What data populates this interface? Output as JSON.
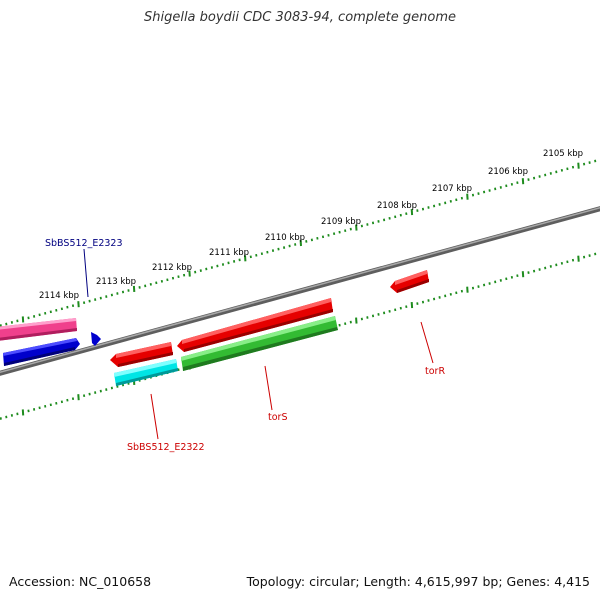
{
  "title": "Shigella boydii CDC 3083-94, complete genome",
  "footer": {
    "accession": "Accession: NC_010658",
    "topology": "Topology: circular; Length: 4,615,997 bp; Genes: 4,415"
  },
  "scale": {
    "unit": "kbp",
    "labels": [
      "2105 kbp",
      "2106 kbp",
      "2107 kbp",
      "2108 kbp",
      "2109 kbp",
      "2110 kbp",
      "2111 kbp",
      "2112 kbp",
      "2113 kbp",
      "2114 kbp"
    ]
  },
  "features": [
    {
      "name": "SbBS512_E2323",
      "color": "#0000cc",
      "label_color": "#000080"
    },
    {
      "name": "SbBS512_E2322",
      "color": "#00e5e5",
      "label_color": "#cc0000"
    },
    {
      "name": "torS",
      "color": "#e60000",
      "label_color": "#cc0000"
    },
    {
      "name": "torR",
      "color": "#e60000",
      "label_color": "#cc0000"
    }
  ],
  "colors": {
    "backbone": "#808080",
    "ticks": "#1e8c1e",
    "forward_red": "#e60000",
    "forward_pink": "#f0408c",
    "reverse_green": "#33bb33",
    "reverse_cyan": "#00e5e5",
    "reverse_blue": "#0000cc"
  }
}
